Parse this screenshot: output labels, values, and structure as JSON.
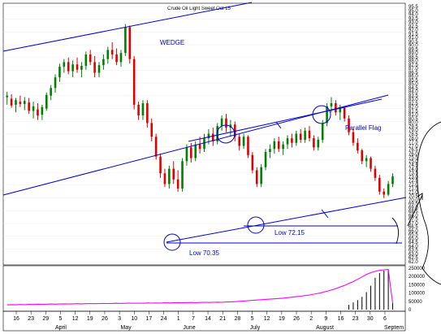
{
  "chart_data": {
    "type": "candlestick",
    "title": "Crude Oil Light Sweet Oct 15",
    "annotations": {
      "wedge": "WEDGE",
      "parallel_flag": "Parallel Flag",
      "low_1": "Low 72.15",
      "low_2": "Low 70.35"
    },
    "price_axis": {
      "range": [
        62.0,
        95.5
      ],
      "ticks": [
        "95.5",
        "95.0",
        "94.0",
        "93.5",
        "93.0",
        "92.5",
        "92.0",
        "91.5",
        "91.0",
        "90.5",
        "90.0",
        "89.5",
        "89.0",
        "88.5",
        "88.0",
        "87.5",
        "87.0",
        "86.5",
        "86.0",
        "85.5",
        "85.0",
        "84.5",
        "84.0",
        "83.5",
        "83.0",
        "82.5",
        "82.0",
        "81.5",
        "81.0",
        "80.5",
        "80.0",
        "79.5",
        "79.0",
        "78.5",
        "78.0",
        "77.5",
        "77.0",
        "76.5",
        "76.0",
        "75.5",
        "75.0",
        "74.5",
        "74.0",
        "73.5",
        "73.0",
        "72.5",
        "72.0",
        "71.5",
        "71.0",
        "70.5",
        "70.0",
        "69.5",
        "69.0",
        "68.5",
        "68.0",
        "67.5",
        "67.0",
        "66.5",
        "66.0",
        "65.5",
        "65.0",
        "64.5",
        "64.0",
        "63.5",
        "63.0",
        "62.5",
        "62.0"
      ]
    },
    "volume_axis": {
      "range": [
        0,
        260000
      ],
      "ticks": [
        "250000",
        "200000",
        "150000",
        "100000",
        "50000",
        "0"
      ]
    },
    "date_axis": {
      "days": [
        "16",
        "23",
        "29",
        "5",
        "12",
        "19",
        "26",
        "3",
        "10",
        "17",
        "24",
        "1",
        "7",
        "14",
        "21",
        "28",
        "5",
        "12",
        "19",
        "26",
        "2",
        "9",
        "16",
        "23",
        "30",
        "6"
      ],
      "months": [
        "April",
        "May",
        "June",
        "July",
        "August",
        "Septem"
      ]
    },
    "price_series": [
      {
        "o": 83.6,
        "h": 84.3,
        "l": 82.6,
        "c": 83.8,
        "up": true
      },
      {
        "o": 83.4,
        "h": 84.0,
        "l": 82.2,
        "c": 82.5,
        "up": false
      },
      {
        "o": 82.6,
        "h": 83.5,
        "l": 81.6,
        "c": 83.2,
        "up": true
      },
      {
        "o": 83.0,
        "h": 83.8,
        "l": 82.3,
        "c": 82.7,
        "up": false
      },
      {
        "o": 82.7,
        "h": 83.6,
        "l": 81.9,
        "c": 83.1,
        "up": true
      },
      {
        "o": 82.9,
        "h": 83.5,
        "l": 81.4,
        "c": 81.8,
        "up": false
      },
      {
        "o": 81.8,
        "h": 83.0,
        "l": 80.8,
        "c": 82.4,
        "up": true
      },
      {
        "o": 82.0,
        "h": 82.8,
        "l": 80.6,
        "c": 81.2,
        "up": false
      },
      {
        "o": 81.3,
        "h": 82.6,
        "l": 80.6,
        "c": 82.3,
        "up": true
      },
      {
        "o": 82.1,
        "h": 84.2,
        "l": 81.8,
        "c": 83.9,
        "up": true
      },
      {
        "o": 83.8,
        "h": 85.2,
        "l": 83.2,
        "c": 84.8,
        "up": true
      },
      {
        "o": 84.8,
        "h": 86.6,
        "l": 84.2,
        "c": 86.2,
        "up": true
      },
      {
        "o": 86.2,
        "h": 88.0,
        "l": 85.6,
        "c": 87.6,
        "up": true
      },
      {
        "o": 87.6,
        "h": 88.6,
        "l": 86.8,
        "c": 88.2,
        "up": true
      },
      {
        "o": 88.2,
        "h": 88.8,
        "l": 86.6,
        "c": 87.0,
        "up": false
      },
      {
        "o": 87.0,
        "h": 88.4,
        "l": 86.2,
        "c": 87.9,
        "up": true
      },
      {
        "o": 87.9,
        "h": 88.8,
        "l": 86.8,
        "c": 87.2,
        "up": false
      },
      {
        "o": 87.2,
        "h": 88.2,
        "l": 86.2,
        "c": 87.7,
        "up": true
      },
      {
        "o": 87.7,
        "h": 89.6,
        "l": 87.2,
        "c": 89.2,
        "up": true
      },
      {
        "o": 89.2,
        "h": 89.8,
        "l": 87.8,
        "c": 88.2,
        "up": false
      },
      {
        "o": 88.2,
        "h": 89.0,
        "l": 86.2,
        "c": 86.8,
        "up": false
      },
      {
        "o": 86.8,
        "h": 88.2,
        "l": 86.2,
        "c": 87.8,
        "up": true
      },
      {
        "o": 87.8,
        "h": 89.2,
        "l": 87.2,
        "c": 88.6,
        "up": true
      },
      {
        "o": 88.6,
        "h": 90.2,
        "l": 88.0,
        "c": 89.8,
        "up": true
      },
      {
        "o": 89.8,
        "h": 90.8,
        "l": 88.6,
        "c": 89.2,
        "up": false
      },
      {
        "o": 89.2,
        "h": 90.0,
        "l": 87.8,
        "c": 88.2,
        "up": false
      },
      {
        "o": 88.2,
        "h": 89.8,
        "l": 87.6,
        "c": 89.4,
        "up": true
      },
      {
        "o": 89.4,
        "h": 93.2,
        "l": 89.0,
        "c": 92.8,
        "up": true
      },
      {
        "o": 92.8,
        "h": 93.0,
        "l": 88.0,
        "c": 88.6,
        "up": false
      },
      {
        "o": 88.6,
        "h": 89.0,
        "l": 82.0,
        "c": 82.6,
        "up": false
      },
      {
        "o": 82.6,
        "h": 83.0,
        "l": 80.6,
        "c": 81.2,
        "up": false
      },
      {
        "o": 81.2,
        "h": 83.2,
        "l": 80.6,
        "c": 82.8,
        "up": true
      },
      {
        "o": 82.8,
        "h": 83.2,
        "l": 79.6,
        "c": 80.2,
        "up": false
      },
      {
        "o": 80.2,
        "h": 80.8,
        "l": 77.8,
        "c": 78.4,
        "up": false
      },
      {
        "o": 78.4,
        "h": 78.8,
        "l": 75.4,
        "c": 75.8,
        "up": false
      },
      {
        "o": 75.8,
        "h": 76.2,
        "l": 73.0,
        "c": 73.6,
        "up": false
      },
      {
        "o": 73.6,
        "h": 74.2,
        "l": 71.8,
        "c": 72.2,
        "up": false
      },
      {
        "o": 72.2,
        "h": 74.6,
        "l": 71.6,
        "c": 74.2,
        "up": true
      },
      {
        "o": 74.2,
        "h": 75.2,
        "l": 72.2,
        "c": 72.8,
        "up": false
      },
      {
        "o": 72.8,
        "h": 74.0,
        "l": 71.2,
        "c": 71.6,
        "up": false
      },
      {
        "o": 71.6,
        "h": 75.6,
        "l": 71.2,
        "c": 75.2,
        "up": true
      },
      {
        "o": 75.2,
        "h": 77.4,
        "l": 74.6,
        "c": 77.0,
        "up": true
      },
      {
        "o": 77.0,
        "h": 77.6,
        "l": 75.0,
        "c": 75.6,
        "up": false
      },
      {
        "o": 75.6,
        "h": 77.8,
        "l": 75.2,
        "c": 77.4,
        "up": true
      },
      {
        "o": 77.4,
        "h": 78.4,
        "l": 76.2,
        "c": 76.8,
        "up": false
      },
      {
        "o": 76.8,
        "h": 78.8,
        "l": 76.4,
        "c": 78.2,
        "up": true
      },
      {
        "o": 78.2,
        "h": 79.4,
        "l": 77.4,
        "c": 78.8,
        "up": true
      },
      {
        "o": 78.8,
        "h": 79.6,
        "l": 77.2,
        "c": 77.8,
        "up": false
      },
      {
        "o": 77.8,
        "h": 80.2,
        "l": 77.4,
        "c": 79.8,
        "up": true
      },
      {
        "o": 79.8,
        "h": 81.2,
        "l": 79.2,
        "c": 80.8,
        "up": true
      },
      {
        "o": 80.8,
        "h": 81.4,
        "l": 79.0,
        "c": 79.6,
        "up": false
      },
      {
        "o": 79.6,
        "h": 80.6,
        "l": 78.4,
        "c": 80.0,
        "up": true
      },
      {
        "o": 80.0,
        "h": 80.4,
        "l": 77.8,
        "c": 78.4,
        "up": false
      },
      {
        "o": 78.4,
        "h": 78.8,
        "l": 76.6,
        "c": 77.2,
        "up": false
      },
      {
        "o": 77.2,
        "h": 78.8,
        "l": 76.8,
        "c": 78.4,
        "up": true
      },
      {
        "o": 78.4,
        "h": 78.6,
        "l": 75.6,
        "c": 76.0,
        "up": false
      },
      {
        "o": 76.0,
        "h": 76.4,
        "l": 73.6,
        "c": 74.0,
        "up": false
      },
      {
        "o": 74.0,
        "h": 74.4,
        "l": 71.8,
        "c": 72.2,
        "up": false
      },
      {
        "o": 72.2,
        "h": 74.8,
        "l": 71.8,
        "c": 74.4,
        "up": true
      },
      {
        "o": 74.4,
        "h": 76.8,
        "l": 74.0,
        "c": 76.4,
        "up": true
      },
      {
        "o": 76.4,
        "h": 77.4,
        "l": 75.6,
        "c": 76.8,
        "up": true
      },
      {
        "o": 76.8,
        "h": 78.2,
        "l": 76.2,
        "c": 77.8,
        "up": true
      },
      {
        "o": 77.8,
        "h": 78.4,
        "l": 76.4,
        "c": 76.8,
        "up": false
      },
      {
        "o": 76.8,
        "h": 77.8,
        "l": 76.0,
        "c": 77.4,
        "up": true
      },
      {
        "o": 77.4,
        "h": 78.6,
        "l": 76.8,
        "c": 78.2,
        "up": true
      },
      {
        "o": 78.2,
        "h": 78.8,
        "l": 77.0,
        "c": 77.6,
        "up": false
      },
      {
        "o": 77.6,
        "h": 79.2,
        "l": 77.2,
        "c": 78.8,
        "up": true
      },
      {
        "o": 78.8,
        "h": 79.4,
        "l": 77.6,
        "c": 78.0,
        "up": false
      },
      {
        "o": 78.0,
        "h": 79.6,
        "l": 77.6,
        "c": 79.2,
        "up": true
      },
      {
        "o": 79.2,
        "h": 79.8,
        "l": 77.8,
        "c": 78.2,
        "up": false
      },
      {
        "o": 78.2,
        "h": 78.6,
        "l": 76.6,
        "c": 77.0,
        "up": false
      },
      {
        "o": 77.0,
        "h": 78.4,
        "l": 76.6,
        "c": 78.0,
        "up": true
      },
      {
        "o": 78.0,
        "h": 80.6,
        "l": 77.6,
        "c": 80.2,
        "up": true
      },
      {
        "o": 80.2,
        "h": 82.8,
        "l": 79.8,
        "c": 82.4,
        "up": true
      },
      {
        "o": 82.4,
        "h": 83.6,
        "l": 81.6,
        "c": 82.8,
        "up": true
      },
      {
        "o": 82.8,
        "h": 83.2,
        "l": 81.2,
        "c": 81.6,
        "up": false
      },
      {
        "o": 81.6,
        "h": 82.6,
        "l": 80.6,
        "c": 82.2,
        "up": true
      },
      {
        "o": 82.2,
        "h": 82.4,
        "l": 80.4,
        "c": 80.8,
        "up": false
      },
      {
        "o": 80.8,
        "h": 81.2,
        "l": 78.6,
        "c": 79.0,
        "up": false
      },
      {
        "o": 79.0,
        "h": 79.4,
        "l": 77.2,
        "c": 77.6,
        "up": false
      },
      {
        "o": 77.6,
        "h": 78.2,
        "l": 76.2,
        "c": 76.6,
        "up": false
      },
      {
        "o": 76.6,
        "h": 76.8,
        "l": 74.8,
        "c": 75.2,
        "up": false
      },
      {
        "o": 75.2,
        "h": 76.0,
        "l": 74.4,
        "c": 75.6,
        "up": true
      },
      {
        "o": 75.6,
        "h": 75.8,
        "l": 73.8,
        "c": 74.2,
        "up": false
      },
      {
        "o": 74.2,
        "h": 74.6,
        "l": 72.6,
        "c": 73.0,
        "up": false
      },
      {
        "o": 73.0,
        "h": 73.4,
        "l": 70.8,
        "c": 71.2,
        "up": false
      },
      {
        "o": 71.2,
        "h": 71.6,
        "l": 70.35,
        "c": 70.8,
        "up": false
      },
      {
        "o": 70.8,
        "h": 72.6,
        "l": 70.6,
        "c": 72.2,
        "up": true
      },
      {
        "o": 72.2,
        "h": 73.6,
        "l": 71.8,
        "c": 73.2,
        "up": true
      }
    ],
    "volume_series": [
      30000,
      31000,
      30000,
      32000,
      31000,
      33000,
      32000,
      34000,
      33000,
      34000,
      35000,
      34000,
      35000,
      36000,
      35000,
      36000,
      37000,
      36000,
      37000,
      38000,
      37000,
      38000,
      39000,
      38000,
      39000,
      40000,
      39000,
      40000,
      41000,
      40000,
      41000,
      40000,
      42000,
      41000,
      42000,
      41000,
      43000,
      42000,
      43000,
      44000,
      43000,
      44000,
      45000,
      44000,
      45000,
      46000,
      45000,
      46000,
      47000,
      46000,
      48000,
      49000,
      50000,
      52000,
      54000,
      56000,
      58000,
      60000,
      62000,
      64000,
      66000,
      68000,
      70000,
      72000,
      75000,
      78000,
      81000,
      84000,
      88000,
      92000,
      97000,
      102000,
      108000,
      115000,
      123000,
      132000,
      142000,
      152000,
      164000,
      176000,
      190000,
      205000,
      220000,
      232000,
      240000,
      246000,
      250000,
      252000,
      40000
    ],
    "volume_bars": [
      0,
      0,
      0,
      0,
      0,
      0,
      0,
      0,
      0,
      0,
      0,
      0,
      0,
      0,
      0,
      0,
      0,
      0,
      0,
      0,
      0,
      0,
      0,
      0,
      0,
      0,
      0,
      0,
      0,
      0,
      0,
      0,
      0,
      0,
      0,
      0,
      0,
      0,
      0,
      0,
      0,
      0,
      0,
      0,
      0,
      0,
      0,
      0,
      0,
      0,
      0,
      0,
      0,
      0,
      0,
      0,
      0,
      0,
      0,
      0,
      0,
      0,
      0,
      0,
      0,
      0,
      0,
      0,
      0,
      0,
      0,
      0,
      0,
      0,
      0,
      0,
      0,
      0,
      30000,
      45000,
      60000,
      80000,
      110000,
      150000,
      200000,
      230000,
      245000,
      252000,
      40000
    ],
    "colors": {
      "up": "#008000",
      "down": "#e00000",
      "trend": "#0000cc",
      "volume_line": "#ff00ff",
      "volume_bar": "#000000",
      "grid": "#e8e8e8"
    }
  }
}
